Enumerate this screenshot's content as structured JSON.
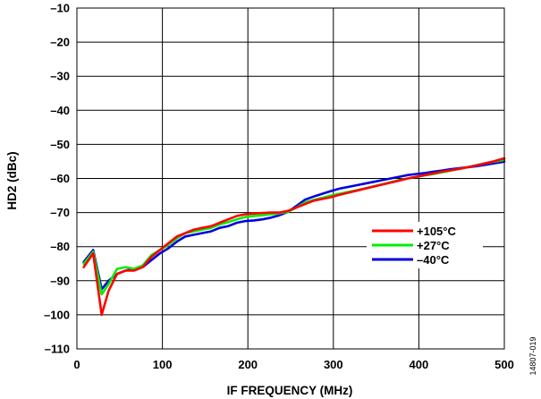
{
  "chart_data": {
    "type": "line",
    "title": "",
    "xlabel": "IF FREQUENCY (MHz)",
    "ylabel": "HD2 (dBc)",
    "xlim": [
      0,
      500
    ],
    "ylim": [
      -110,
      -10
    ],
    "x_ticks": [
      {
        "value": 0,
        "label": "0"
      },
      {
        "value": 100,
        "label": "100"
      },
      {
        "value": 200,
        "label": "200"
      },
      {
        "value": 300,
        "label": "300"
      },
      {
        "value": 400,
        "label": "400"
      },
      {
        "value": 500,
        "label": "500"
      }
    ],
    "y_ticks": [
      {
        "value": -10,
        "label": "–10"
      },
      {
        "value": -20,
        "label": "–20"
      },
      {
        "value": -30,
        "label": "–30"
      },
      {
        "value": -40,
        "label": "–40"
      },
      {
        "value": -50,
        "label": "–50"
      },
      {
        "value": -60,
        "label": "–60"
      },
      {
        "value": -70,
        "label": "–70"
      },
      {
        "value": -80,
        "label": "–80"
      },
      {
        "value": -90,
        "label": "–90"
      },
      {
        "value": -100,
        "label": "–100"
      },
      {
        "value": -110,
        "label": "–110"
      }
    ],
    "grid": true,
    "legend_position": "right",
    "series": [
      {
        "name": "+105°C",
        "color": "#ff0000",
        "x": [
          8,
          19,
          29,
          37,
          47,
          57,
          67,
          77,
          87,
          97,
          107,
          117,
          127,
          137,
          147,
          157,
          167,
          177,
          187,
          197,
          207,
          217,
          227,
          237,
          247,
          257,
          267,
          277,
          287,
          297,
          307,
          317,
          327,
          337,
          347,
          357,
          367,
          377,
          387,
          397,
          407,
          417,
          427,
          437,
          447,
          457,
          467,
          477,
          487,
          497,
          500
        ],
        "y": [
          -86,
          -82,
          -100,
          -93,
          -88,
          -87,
          -87,
          -86,
          -83,
          -81,
          -79,
          -77,
          -76,
          -75,
          -74.5,
          -74,
          -73,
          -72,
          -71,
          -70.5,
          -70.3,
          -70.1,
          -70,
          -70,
          -69.5,
          -68.5,
          -67.5,
          -66.5,
          -66,
          -65.5,
          -64.8,
          -64.2,
          -63.6,
          -63,
          -62.4,
          -61.8,
          -61.2,
          -60.6,
          -60,
          -59.5,
          -59,
          -58.5,
          -58,
          -57.6,
          -57.2,
          -56.7,
          -56.2,
          -55.6,
          -55,
          -54.3,
          -54.1
        ]
      },
      {
        "name": "+27°C",
        "color": "#00ee00",
        "x": [
          8,
          19,
          29,
          37,
          47,
          57,
          67,
          77,
          87,
          97,
          107,
          117,
          127,
          137,
          147,
          157,
          167,
          177,
          187,
          197,
          207,
          217,
          227,
          237,
          247,
          257,
          267,
          277,
          287,
          297,
          307,
          317,
          327,
          337,
          347,
          357,
          367,
          377,
          387,
          397,
          407,
          417,
          427,
          437,
          447,
          457,
          467,
          477,
          487,
          497,
          500
        ],
        "y": [
          -85,
          -81.5,
          -94,
          -91,
          -86.5,
          -86,
          -86.5,
          -85.5,
          -82.5,
          -81,
          -79.5,
          -77.5,
          -76,
          -75.5,
          -75,
          -74.5,
          -73.5,
          -72.8,
          -72,
          -71.3,
          -71,
          -70.8,
          -70.5,
          -70.2,
          -69.8,
          -68.5,
          -67,
          -66.3,
          -65.7,
          -65,
          -64.5,
          -64,
          -63.5,
          -62.9,
          -62.3,
          -61.7,
          -61.1,
          -60.5,
          -60,
          -59.5,
          -59.1,
          -58.7,
          -58.2,
          -57.7,
          -57.2,
          -56.7,
          -56.1,
          -55.6,
          -55.1,
          -54.7,
          -54.5
        ]
      },
      {
        "name": "–40°C",
        "color": "#0000dd",
        "x": [
          8,
          19,
          29,
          37,
          47,
          57,
          67,
          77,
          87,
          97,
          107,
          117,
          127,
          137,
          147,
          157,
          167,
          177,
          187,
          197,
          207,
          217,
          227,
          237,
          247,
          257,
          267,
          277,
          287,
          297,
          307,
          317,
          327,
          337,
          347,
          357,
          367,
          377,
          387,
          397,
          407,
          417,
          427,
          437,
          447,
          457,
          467,
          477,
          487,
          497,
          500
        ],
        "y": [
          -84.5,
          -81,
          -92.5,
          -90,
          -88,
          -87,
          -86.5,
          -86,
          -84,
          -82,
          -80.5,
          -78.5,
          -77,
          -76.5,
          -76,
          -75.5,
          -74.5,
          -74,
          -73,
          -72.5,
          -72.3,
          -72,
          -71.5,
          -70.8,
          -69.8,
          -68,
          -66.2,
          -65.3,
          -64.5,
          -63.7,
          -63,
          -62.5,
          -62,
          -61.5,
          -61,
          -60.5,
          -60,
          -59.5,
          -59,
          -58.7,
          -58.4,
          -58,
          -57.7,
          -57.3,
          -57,
          -56.7,
          -56.4,
          -56,
          -55.6,
          -55.2,
          -55
        ]
      }
    ]
  },
  "figure_id": "14807-019"
}
